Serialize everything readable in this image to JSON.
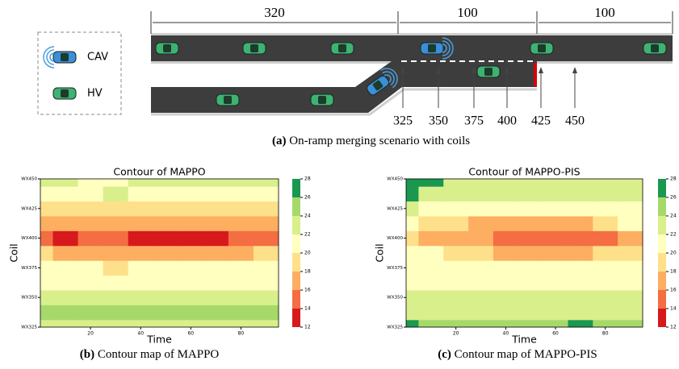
{
  "diagram": {
    "distances": [
      "320",
      "100",
      "100"
    ],
    "legend": [
      "CAV",
      "HV"
    ],
    "coils": [
      "325",
      "350",
      "375",
      "400",
      "425",
      "450"
    ],
    "caption_label": "(a)",
    "caption": "On-ramp merging scenario with coils"
  },
  "chart_data": [
    {
      "type": "contour",
      "title": "Contour of MAPPO",
      "xlabel": "Time",
      "ylabel": "Coil",
      "caption_label": "(b)",
      "caption": "Contour map of MAPPO",
      "x": [
        0,
        10,
        20,
        30,
        40,
        50,
        60,
        70,
        80,
        90
      ],
      "y": [
        325,
        337.5,
        350,
        362.5,
        375,
        387.5,
        400,
        412.5,
        425,
        437.5,
        450
      ],
      "z": [
        [
          23,
          23,
          23,
          23,
          23,
          23,
          23,
          23,
          23,
          23
        ],
        [
          25,
          25,
          25,
          25,
          25,
          25,
          25,
          25,
          25,
          25
        ],
        [
          23,
          23,
          23,
          23,
          23,
          23,
          23,
          23,
          23,
          23
        ],
        [
          21,
          21,
          21,
          21,
          21,
          21,
          21,
          21,
          21,
          21
        ],
        [
          21,
          21,
          21,
          19,
          21,
          21,
          21,
          21,
          21,
          21
        ],
        [
          19,
          17,
          17,
          17,
          17,
          17,
          17,
          17,
          17,
          19
        ],
        [
          15,
          13,
          15,
          15,
          13,
          13,
          13,
          13,
          15,
          15
        ],
        [
          17,
          17,
          17,
          17,
          17,
          17,
          17,
          17,
          17,
          17
        ],
        [
          19,
          19,
          19,
          19,
          19,
          19,
          19,
          19,
          19,
          19
        ],
        [
          21,
          21,
          21,
          23,
          21,
          21,
          21,
          21,
          21,
          21
        ],
        [
          23,
          23,
          21,
          21,
          23,
          23,
          23,
          23,
          23,
          23
        ]
      ],
      "levels": [
        12,
        14,
        16,
        18,
        20,
        22,
        24,
        26,
        28
      ],
      "colors": [
        "#d7191c",
        "#f46d43",
        "#fdae61",
        "#fee08b",
        "#ffffbf",
        "#d9ef8b",
        "#a6d96a",
        "#1a9850"
      ],
      "xlim": [
        0,
        95
      ],
      "xticks": [
        20,
        40,
        60,
        80
      ],
      "ylim": [
        325,
        450
      ],
      "yticks": [
        {
          "value": 325,
          "label": "WX325"
        },
        {
          "value": 350,
          "label": "WX350"
        },
        {
          "value": 375,
          "label": "WX375"
        },
        {
          "value": 400,
          "label": "WX400"
        },
        {
          "value": 425,
          "label": "WX425"
        },
        {
          "value": 450,
          "label": "WX450"
        }
      ]
    },
    {
      "type": "contour",
      "title": "Contour of MAPPO-PIS",
      "xlabel": "Time",
      "ylabel": "Coil",
      "caption_label": "(c)",
      "caption": "Contour map of MAPPO-PIS",
      "x": [
        0,
        10,
        20,
        30,
        40,
        50,
        60,
        70,
        80,
        90
      ],
      "y": [
        325,
        337.5,
        350,
        362.5,
        375,
        387.5,
        400,
        412.5,
        425,
        437.5,
        450
      ],
      "z": [
        [
          27,
          25,
          25,
          25,
          25,
          25,
          25,
          27,
          25,
          25
        ],
        [
          23,
          23,
          23,
          23,
          23,
          23,
          23,
          23,
          23,
          23
        ],
        [
          23,
          23,
          23,
          23,
          23,
          23,
          23,
          23,
          23,
          23
        ],
        [
          21,
          21,
          21,
          21,
          21,
          21,
          21,
          21,
          21,
          21
        ],
        [
          21,
          21,
          21,
          21,
          21,
          21,
          21,
          21,
          21,
          21
        ],
        [
          21,
          21,
          19,
          19,
          17,
          17,
          17,
          17,
          19,
          19
        ],
        [
          19,
          17,
          17,
          17,
          15,
          15,
          15,
          15,
          15,
          17
        ],
        [
          21,
          19,
          19,
          17,
          17,
          17,
          17,
          17,
          19,
          21
        ],
        [
          23,
          21,
          21,
          21,
          21,
          21,
          21,
          21,
          21,
          21
        ],
        [
          27,
          23,
          23,
          23,
          23,
          23,
          23,
          23,
          23,
          23
        ],
        [
          27,
          27,
          23,
          23,
          23,
          23,
          23,
          23,
          23,
          23
        ]
      ],
      "levels": [
        12,
        14,
        16,
        18,
        20,
        22,
        24,
        26,
        28
      ],
      "colors": [
        "#d7191c",
        "#f46d43",
        "#fdae61",
        "#fee08b",
        "#ffffbf",
        "#d9ef8b",
        "#a6d96a",
        "#1a9850"
      ],
      "xlim": [
        0,
        95
      ],
      "xticks": [
        20,
        40,
        60,
        80
      ],
      "ylim": [
        325,
        450
      ],
      "yticks": [
        {
          "value": 325,
          "label": "WX325"
        },
        {
          "value": 350,
          "label": "WX350"
        },
        {
          "value": 375,
          "label": "WX375"
        },
        {
          "value": 400,
          "label": "WX400"
        },
        {
          "value": 425,
          "label": "WX425"
        },
        {
          "value": 450,
          "label": "WX450"
        }
      ]
    }
  ]
}
